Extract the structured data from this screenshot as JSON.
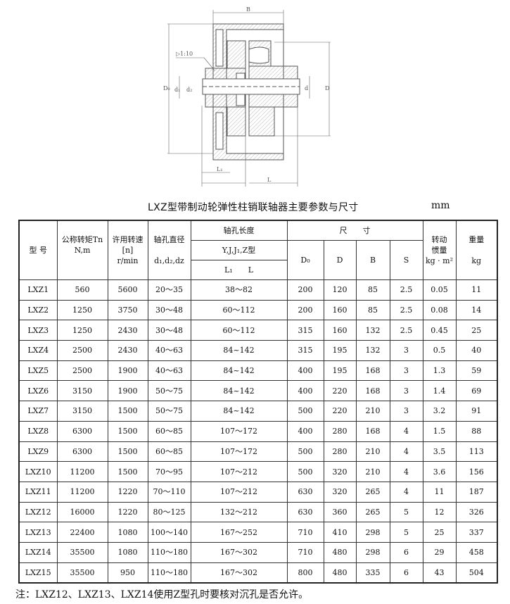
{
  "drawing": {
    "labels": {
      "B": "B",
      "D0": "D₀",
      "d1": "d₁",
      "dz": "d₂",
      "d": "d",
      "D": "D",
      "taper": "▷1:10",
      "L1": "L₁",
      "L": "L"
    }
  },
  "title": "LXZ型带制动轮弹性柱销联轴器主要参数与尺寸",
  "unit": "mm",
  "table": {
    "headers": {
      "model": "型 号",
      "torque": "公称转矩Tn",
      "torque_unit": "N,m",
      "speed": "许用转速",
      "speed_sym": "[n]",
      "speed_unit": "r/min",
      "bore_dia": "轴孔直径",
      "bore_dia_sym": "d₁,d₂,dz",
      "bore_len": "轴孔长度",
      "bore_types": "Y,J,J₁,Z型",
      "bore_len_sym": "L₁　　L",
      "dims": "尺　　寸",
      "D0": "D₀",
      "D": "D",
      "B": "B",
      "S": "S",
      "inertia": "转动",
      "inertia2": "惯量",
      "inertia_unit": "kg · m²",
      "weight": "重量",
      "weight_unit": "kg"
    },
    "rows": [
      [
        "LXZ1",
        "560",
        "5600",
        "20～35",
        "38～82",
        "200",
        "120",
        "85",
        "2.5",
        "0.05",
        "11"
      ],
      [
        "LXZ2",
        "1250",
        "3750",
        "30～48",
        "60～112",
        "200",
        "160",
        "85",
        "2.5",
        "0.08",
        "14"
      ],
      [
        "LXZ3",
        "1250",
        "2430",
        "30～48",
        "60～112",
        "315",
        "160",
        "132",
        "2.5",
        "0.45",
        "25"
      ],
      [
        "LXZ4",
        "2500",
        "2430",
        "40～63",
        "84~142",
        "315",
        "195",
        "132",
        "3",
        "0.5",
        "40"
      ],
      [
        "LXZ5",
        "2500",
        "1900",
        "40～63",
        "84~142",
        "400",
        "195",
        "168",
        "3",
        "1.3",
        "59"
      ],
      [
        "LXZ6",
        "3150",
        "1900",
        "50～75",
        "84~142",
        "400",
        "220",
        "168",
        "3",
        "1.4",
        "69"
      ],
      [
        "LXZ7",
        "3150",
        "1500",
        "50～75",
        "84~142",
        "500",
        "220",
        "210",
        "3",
        "3.2",
        "91"
      ],
      [
        "LXZ8",
        "6300",
        "1500",
        "60～85",
        "107～172",
        "400",
        "280",
        "168",
        "4",
        "1.5",
        "88"
      ],
      [
        "LXZ9",
        "6300",
        "1500",
        "60～85",
        "107～172",
        "500",
        "280",
        "210",
        "4",
        "3.5",
        "113"
      ],
      [
        "LXZ10",
        "11200",
        "1500",
        "70～95",
        "107～212",
        "500",
        "320",
        "210",
        "4",
        "3.6",
        "156"
      ],
      [
        "LXZ11",
        "11200",
        "1220",
        "70～110",
        "107～212",
        "630",
        "320",
        "265",
        "4",
        "11",
        "187"
      ],
      [
        "LXZ12",
        "16000",
        "1220",
        "80～125",
        "132～212",
        "630",
        "360",
        "265",
        "5",
        "12",
        "326"
      ],
      [
        "LXZ13",
        "22400",
        "1080",
        "100～140",
        "167～252",
        "710",
        "410",
        "298",
        "5",
        "25",
        "337"
      ],
      [
        "LXZ14",
        "35500",
        "1080",
        "110～180",
        "167～302",
        "710",
        "480",
        "298",
        "6",
        "29",
        "458"
      ],
      [
        "LXZ15",
        "35500",
        "950",
        "110～180",
        "167～302",
        "800",
        "480",
        "335",
        "6",
        "43",
        "504"
      ]
    ]
  },
  "note": "注：LXZ12、LXZ13、LXZ14使用Z型孔时要核对沉孔是否允许。"
}
